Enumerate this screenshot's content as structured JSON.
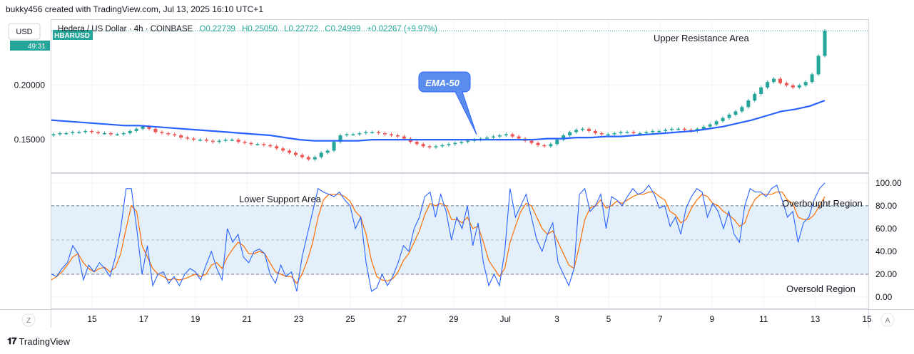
{
  "header": {
    "credit": "bukky456 created with TradingView.com, Jul 13, 2025 16:10 UTC+1"
  },
  "footer": {
    "logo_text": "TradingView"
  },
  "toolbar": {
    "currency": "USD",
    "z_label": "Z",
    "a_label": "A"
  },
  "chart_data": [
    {
      "type": "candlestick",
      "symbol_tag": "HBARUSD",
      "symbol_line": "Hedera / US Dollar · 4h · COINBASE",
      "ohlc": {
        "o": "O0.22739",
        "h": "H0.25050",
        "l": "L0.22722",
        "c": "C0.24999",
        "chg": "+0.02267 (+9.97%)"
      },
      "price_label": "49:31",
      "y_ticks": [
        "0.20000",
        "0.15000"
      ],
      "ylim": [
        0.12,
        0.26
      ],
      "x_ticks": [
        "15",
        "17",
        "19",
        "21",
        "23",
        "25",
        "27",
        "29",
        "Jul",
        "3",
        "5",
        "7",
        "9",
        "11",
        "13",
        "15"
      ],
      "close_prices": [
        0.155,
        0.156,
        0.156,
        0.157,
        0.157,
        0.158,
        0.157,
        0.156,
        0.156,
        0.155,
        0.155,
        0.156,
        0.158,
        0.16,
        0.162,
        0.16,
        0.157,
        0.156,
        0.155,
        0.154,
        0.152,
        0.151,
        0.15,
        0.15,
        0.149,
        0.148,
        0.149,
        0.15,
        0.15,
        0.148,
        0.147,
        0.146,
        0.146,
        0.145,
        0.144,
        0.142,
        0.14,
        0.138,
        0.136,
        0.134,
        0.132,
        0.134,
        0.138,
        0.14,
        0.148,
        0.154,
        0.155,
        0.155,
        0.156,
        0.157,
        0.157,
        0.156,
        0.155,
        0.154,
        0.153,
        0.151,
        0.148,
        0.146,
        0.144,
        0.143,
        0.144,
        0.145,
        0.146,
        0.147,
        0.148,
        0.149,
        0.15,
        0.151,
        0.152,
        0.153,
        0.154,
        0.155,
        0.153,
        0.151,
        0.149,
        0.147,
        0.145,
        0.144,
        0.146,
        0.15,
        0.154,
        0.157,
        0.159,
        0.16,
        0.158,
        0.156,
        0.155,
        0.155,
        0.156,
        0.157,
        0.157,
        0.156,
        0.156,
        0.157,
        0.158,
        0.158,
        0.159,
        0.16,
        0.16,
        0.159,
        0.158,
        0.16,
        0.162,
        0.164,
        0.167,
        0.17,
        0.173,
        0.176,
        0.18,
        0.186,
        0.192,
        0.198,
        0.203,
        0.206,
        0.202,
        0.2,
        0.198,
        0.2,
        0.203,
        0.21,
        0.227,
        0.25
      ],
      "ema_label": "EMA-50",
      "ema": [
        0.168,
        0.167,
        0.166,
        0.165,
        0.164,
        0.163,
        0.163,
        0.162,
        0.161,
        0.16,
        0.159,
        0.158,
        0.157,
        0.156,
        0.155,
        0.154,
        0.152,
        0.15,
        0.149,
        0.149,
        0.149,
        0.149,
        0.15,
        0.15,
        0.15,
        0.15,
        0.15,
        0.15,
        0.15,
        0.15,
        0.15,
        0.15,
        0.15,
        0.15,
        0.151,
        0.151,
        0.152,
        0.152,
        0.153,
        0.153,
        0.154,
        0.155,
        0.156,
        0.157,
        0.158,
        0.16,
        0.162,
        0.165,
        0.168,
        0.172,
        0.176,
        0.178,
        0.181,
        0.186
      ],
      "annotations": [
        "Upper Resistance Area"
      ]
    },
    {
      "type": "line",
      "indicator": "stochastic",
      "y_ticks": [
        "100.00",
        "80.00",
        "60.00",
        "40.00",
        "20.00",
        "0.00"
      ],
      "ylim": [
        -10,
        108
      ],
      "bands": [
        80,
        50,
        20
      ],
      "series": [
        {
          "color": "#2962ff",
          "values": [
            20,
            18,
            25,
            30,
            45,
            38,
            15,
            28,
            22,
            30,
            25,
            18,
            35,
            60,
            95,
            95,
            60,
            20,
            45,
            10,
            20,
            22,
            12,
            18,
            10,
            20,
            25,
            22,
            15,
            28,
            40,
            25,
            15,
            60,
            48,
            55,
            35,
            30,
            40,
            42,
            38,
            20,
            12,
            28,
            18,
            22,
            5,
            35,
            55,
            75,
            95,
            92,
            90,
            88,
            92,
            85,
            80,
            60,
            70,
            30,
            5,
            8,
            20,
            10,
            18,
            30,
            45,
            40,
            60,
            70,
            88,
            92,
            70,
            90,
            75,
            50,
            70,
            60,
            80,
            45,
            65,
            30,
            10,
            20,
            10,
            40,
            95,
            70,
            80,
            90,
            70,
            50,
            40,
            55,
            65,
            30,
            20,
            10,
            25,
            90,
            95,
            75,
            80,
            90,
            60,
            88,
            85,
            80,
            88,
            95,
            90,
            92,
            98,
            90,
            78,
            80,
            62,
            70,
            55,
            78,
            88,
            95,
            92,
            70,
            82,
            75,
            60,
            75,
            55,
            48,
            80,
            95,
            92,
            92,
            88,
            95,
            98,
            85,
            70,
            75,
            48,
            65,
            70,
            85,
            95,
            100
          ]
        },
        {
          "color": "#ff6d00",
          "values": [
            15,
            18,
            22,
            28,
            35,
            38,
            30,
            25,
            22,
            25,
            26,
            22,
            26,
            38,
            60,
            80,
            75,
            45,
            35,
            25,
            20,
            18,
            15,
            16,
            15,
            16,
            18,
            20,
            18,
            20,
            28,
            30,
            25,
            35,
            42,
            48,
            45,
            38,
            38,
            40,
            38,
            30,
            22,
            20,
            18,
            18,
            12,
            20,
            32,
            48,
            70,
            85,
            90,
            90,
            90,
            88,
            84,
            75,
            70,
            55,
            32,
            18,
            15,
            14,
            16,
            22,
            32,
            38,
            48,
            58,
            72,
            82,
            80,
            82,
            80,
            68,
            68,
            65,
            70,
            60,
            62,
            48,
            32,
            25,
            18,
            25,
            48,
            62,
            75,
            82,
            80,
            70,
            60,
            55,
            58,
            48,
            38,
            28,
            25,
            45,
            68,
            78,
            80,
            85,
            78,
            80,
            84,
            82,
            85,
            88,
            90,
            90,
            92,
            92,
            88,
            85,
            75,
            72,
            65,
            68,
            78,
            85,
            90,
            88,
            82,
            80,
            75,
            72,
            68,
            62,
            65,
            78,
            86,
            90,
            90,
            90,
            92,
            92,
            85,
            82,
            70,
            68,
            68,
            72,
            80,
            88
          ]
        }
      ],
      "annotations": [
        "Lower Support Area",
        "Overbought Region",
        "Oversold Region"
      ]
    }
  ],
  "colors": {
    "up": "#26a69a",
    "down": "#ef5350",
    "ema": "#2962ff",
    "fast": "#2962ff",
    "slow": "#ff6d00",
    "band_fill": "#e3f0fc"
  }
}
